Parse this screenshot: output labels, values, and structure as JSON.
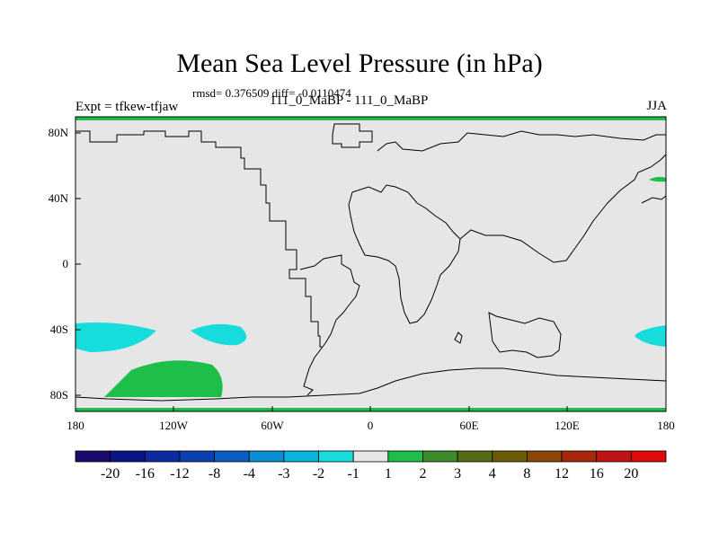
{
  "title": "Mean Sea Level Pressure (in hPa)",
  "stats": "rmsd= 0.376509 diff= -0.0110474",
  "experiment_label": "Expt = tfkew-tfjaw",
  "experiment_names": "111_0_MaBP - 111_0_MaBP",
  "season": "JJA",
  "axes": {
    "x_ticks": [
      "180",
      "120W",
      "60W",
      "0",
      "60E",
      "120E",
      "180"
    ],
    "y_ticks": [
      "80N",
      "40N",
      "0",
      "40S",
      "80S"
    ],
    "x_range_lon": [
      -180,
      180
    ],
    "y_range_lat": [
      -90,
      90
    ]
  },
  "colorbar": {
    "labels": [
      "-20",
      "-16",
      "-12",
      "-8",
      "-4",
      "-3",
      "-2",
      "-1",
      "1",
      "2",
      "3",
      "4",
      "8",
      "12",
      "16",
      "20"
    ],
    "colors": [
      "#1a0a6e",
      "#0b1485",
      "#0a2a9e",
      "#0b40b0",
      "#0b5fc4",
      "#0a8fd4",
      "#0ab4dc",
      "#16dcdc",
      "#e6e6e6",
      "#1ebe4a",
      "#3c8c2a",
      "#556b14",
      "#6b5a08",
      "#8c460a",
      "#a8280c",
      "#c01414",
      "#e00a0a"
    ]
  },
  "map": {
    "background_color": "#e6e6e6",
    "coastline_color": "#000000",
    "anomaly_regions": [
      {
        "name": "south-pacific-positive",
        "value_range": "1 to 2",
        "color": "#1ebe4a"
      },
      {
        "name": "south-pacific-negative-west",
        "value_range": "-2 to -1",
        "color": "#16dcdc"
      },
      {
        "name": "south-pacific-negative-east",
        "value_range": "-2 to -1",
        "color": "#16dcdc"
      },
      {
        "name": "south-indian-negative",
        "value_range": "-2 to -1",
        "color": "#16dcdc"
      },
      {
        "name": "north-pacific-positive",
        "value_range": "1 to 2",
        "color": "#1ebe4a"
      },
      {
        "name": "antarctic-positive-band",
        "value_range": "1 to 2",
        "color": "#1ebe4a"
      },
      {
        "name": "arctic-positive-band",
        "value_range": "1 to 2",
        "color": "#1ebe4a"
      }
    ]
  }
}
